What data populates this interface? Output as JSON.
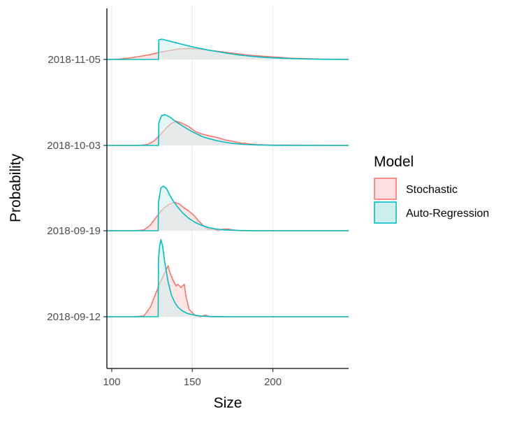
{
  "chart_data": {
    "type": "ridgeline-density",
    "xlabel": "Size",
    "ylabel": "Probability",
    "xlim": [
      97,
      247
    ],
    "x_ticks": [
      100,
      150,
      200
    ],
    "x_tick_labels": [
      "100",
      "150",
      "200"
    ],
    "grid": "vertical major gridlines",
    "categories": [
      "2018-09-12",
      "2018-09-19",
      "2018-10-03",
      "2018-11-05"
    ],
    "legend": {
      "title": "Model",
      "position": "right",
      "entries": [
        {
          "name": "Stochastic",
          "line_color": "#F8766D",
          "fill_color": "#FFE0DE"
        },
        {
          "name": "Auto-Regression",
          "line_color": "#00BFC4",
          "fill_color": "#CDEEEF"
        }
      ]
    },
    "series": [
      {
        "name": "Stochastic",
        "color": "#F8766D",
        "densities": {
          "2018-09-12": [
            [
              97,
              0
            ],
            [
              113,
              0
            ],
            [
              120,
              0.01
            ],
            [
              124,
              0.12
            ],
            [
              127,
              0.27
            ],
            [
              130,
              0.42
            ],
            [
              133,
              0.55
            ],
            [
              135,
              0.63
            ],
            [
              136,
              0.55
            ],
            [
              138,
              0.45
            ],
            [
              140,
              0.38
            ],
            [
              141,
              0.4
            ],
            [
              143,
              0.36
            ],
            [
              145,
              0.4
            ],
            [
              146,
              0.26
            ],
            [
              148,
              0.09
            ],
            [
              150,
              0.05
            ],
            [
              152,
              0.01
            ],
            [
              155,
              0
            ],
            [
              158,
              0.02
            ],
            [
              161,
              0
            ],
            [
              247,
              0
            ]
          ],
          "2018-09-19": [
            [
              97,
              0
            ],
            [
              114,
              0
            ],
            [
              120,
              0.01
            ],
            [
              124,
              0.07
            ],
            [
              127,
              0.15
            ],
            [
              130,
              0.23
            ],
            [
              133,
              0.29
            ],
            [
              136,
              0.33
            ],
            [
              139,
              0.35
            ],
            [
              142,
              0.33
            ],
            [
              145,
              0.28
            ],
            [
              148,
              0.24
            ],
            [
              151,
              0.19
            ],
            [
              154,
              0.12
            ],
            [
              157,
              0.06
            ],
            [
              160,
              0.02
            ],
            [
              163,
              0.02
            ],
            [
              166,
              0
            ],
            [
              169,
              0.02
            ],
            [
              172,
              0.02
            ],
            [
              175,
              0.01
            ],
            [
              180,
              0
            ],
            [
              247,
              0
            ]
          ],
          "2018-10-03": [
            [
              97,
              0
            ],
            [
              117,
              0
            ],
            [
              122,
              0.01
            ],
            [
              126,
              0.05
            ],
            [
              130,
              0.13
            ],
            [
              134,
              0.22
            ],
            [
              137,
              0.27
            ],
            [
              140,
              0.3
            ],
            [
              144,
              0.27
            ],
            [
              148,
              0.23
            ],
            [
              152,
              0.17
            ],
            [
              156,
              0.14
            ],
            [
              160,
              0.12
            ],
            [
              165,
              0.1
            ],
            [
              170,
              0.07
            ],
            [
              175,
              0.05
            ],
            [
              180,
              0.03
            ],
            [
              185,
              0.02
            ],
            [
              190,
              0.01
            ],
            [
              197,
              0.005
            ],
            [
              247,
              0
            ]
          ],
          "2018-11-05": [
            [
              97,
              0
            ],
            [
              105,
              0.005
            ],
            [
              112,
              0.02
            ],
            [
              118,
              0.04
            ],
            [
              124,
              0.06
            ],
            [
              130,
              0.09
            ],
            [
              136,
              0.11
            ],
            [
              142,
              0.13
            ],
            [
              148,
              0.135
            ],
            [
              154,
              0.13
            ],
            [
              160,
              0.115
            ],
            [
              166,
              0.1
            ],
            [
              172,
              0.085
            ],
            [
              178,
              0.07
            ],
            [
              184,
              0.055
            ],
            [
              190,
              0.045
            ],
            [
              197,
              0.035
            ],
            [
              204,
              0.025
            ],
            [
              212,
              0.015
            ],
            [
              220,
              0.01
            ],
            [
              230,
              0.004
            ],
            [
              247,
              0
            ]
          ]
        }
      },
      {
        "name": "Auto-Regression",
        "color": "#00BFC4",
        "densities": {
          "2018-09-12": [
            [
              97,
              0
            ],
            [
              128.8,
              0
            ],
            [
              129,
              0.7
            ],
            [
              129.6,
              0.85
            ],
            [
              130.5,
              0.95
            ],
            [
              131.5,
              0.88
            ],
            [
              133,
              0.66
            ],
            [
              135,
              0.43
            ],
            [
              137,
              0.27
            ],
            [
              139,
              0.18
            ],
            [
              141,
              0.12
            ],
            [
              144,
              0.07
            ],
            [
              147,
              0.04
            ],
            [
              150,
              0.025
            ],
            [
              154,
              0.012
            ],
            [
              158,
              0.005
            ],
            [
              165,
              0.002
            ],
            [
              175,
              0
            ],
            [
              247,
              0
            ]
          ],
          "2018-09-19": [
            [
              97,
              0
            ],
            [
              128.8,
              0
            ],
            [
              129,
              0.35
            ],
            [
              130.5,
              0.53
            ],
            [
              132,
              0.55
            ],
            [
              134,
              0.52
            ],
            [
              136,
              0.44
            ],
            [
              138,
              0.37
            ],
            [
              141,
              0.29
            ],
            [
              144,
              0.22
            ],
            [
              148,
              0.15
            ],
            [
              152,
              0.1
            ],
            [
              156,
              0.065
            ],
            [
              160,
              0.04
            ],
            [
              165,
              0.02
            ],
            [
              170,
              0.01
            ],
            [
              178,
              0.004
            ],
            [
              190,
              0
            ],
            [
              247,
              0
            ]
          ],
          "2018-10-03": [
            [
              97,
              0
            ],
            [
              129,
              0
            ],
            [
              129.2,
              0.28
            ],
            [
              131,
              0.37
            ],
            [
              133,
              0.38
            ],
            [
              136,
              0.35
            ],
            [
              140,
              0.29
            ],
            [
              144,
              0.24
            ],
            [
              148,
              0.19
            ],
            [
              152,
              0.15
            ],
            [
              156,
              0.11
            ],
            [
              160,
              0.085
            ],
            [
              165,
              0.06
            ],
            [
              170,
              0.04
            ],
            [
              175,
              0.025
            ],
            [
              182,
              0.013
            ],
            [
              190,
              0.006
            ],
            [
              200,
              0.002
            ],
            [
              215,
              0
            ],
            [
              247,
              0
            ]
          ],
          "2018-11-05": [
            [
              97,
              0
            ],
            [
              129,
              0
            ],
            [
              129.2,
              0.24
            ],
            [
              131,
              0.25
            ],
            [
              134,
              0.235
            ],
            [
              138,
              0.215
            ],
            [
              142,
              0.195
            ],
            [
              146,
              0.175
            ],
            [
              150,
              0.155
            ],
            [
              155,
              0.135
            ],
            [
              160,
              0.115
            ],
            [
              166,
              0.095
            ],
            [
              172,
              0.075
            ],
            [
              178,
              0.058
            ],
            [
              185,
              0.042
            ],
            [
              192,
              0.03
            ],
            [
              200,
              0.02
            ],
            [
              210,
              0.011
            ],
            [
              220,
              0.006
            ],
            [
              232,
              0.002
            ],
            [
              247,
              0
            ]
          ]
        }
      }
    ]
  }
}
